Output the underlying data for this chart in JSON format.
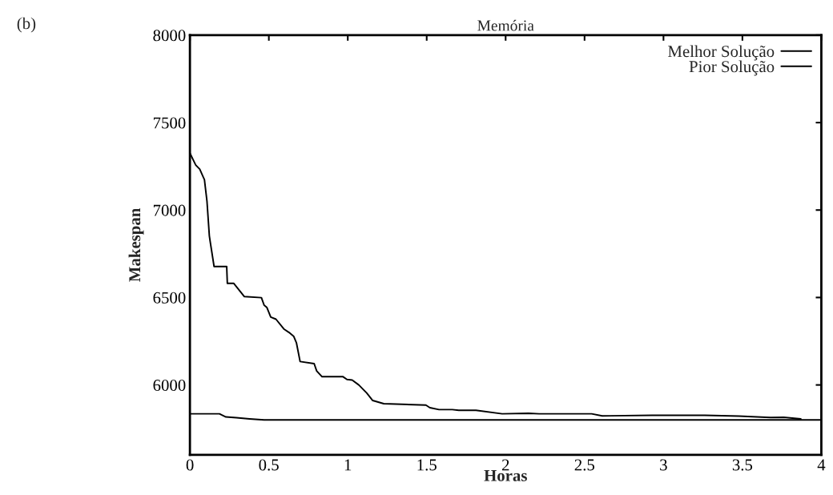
{
  "chart_data": {
    "type": "line",
    "title": "Memória",
    "xlabel": "Horas",
    "ylabel": "Makespan",
    "annotations": [
      "(b)"
    ],
    "xlim": [
      0,
      4
    ],
    "xticks": [
      0,
      0.5,
      1,
      1.5,
      2,
      2.5,
      3,
      3.5,
      4
    ],
    "ylim": [
      5600,
      8000
    ],
    "yticks": [
      6000,
      6500,
      7000,
      7500,
      8000
    ],
    "grid": false,
    "legend": "top right",
    "marker": "none",
    "line_style": "solid",
    "series": [
      {
        "name": "Melhor Solução",
        "color": "#000000",
        "x": [
          0,
          0.187,
          0.228,
          0.295,
          0.378,
          0.47,
          4
        ],
        "values": [
          5835,
          5835,
          5817,
          5813,
          5806,
          5800,
          5800
        ]
      },
      {
        "name": "Pior Solução",
        "color": "#000000",
        "x": [
          0,
          0.037,
          0.062,
          0.092,
          0.108,
          0.123,
          0.128,
          0.153,
          0.233,
          0.237,
          0.277,
          0.345,
          0.453,
          0.47,
          0.487,
          0.512,
          0.545,
          0.595,
          0.628,
          0.658,
          0.675,
          0.698,
          0.787,
          0.803,
          0.837,
          0.97,
          0.995,
          1.028,
          1.07,
          1.12,
          1.158,
          1.228,
          1.495,
          1.52,
          1.578,
          1.662,
          1.703,
          1.812,
          1.978,
          2.145,
          2.212,
          2.545,
          2.612,
          2.928,
          3.262,
          3.478,
          3.678,
          3.762,
          3.87
        ],
        "values": [
          7325,
          7257,
          7234,
          7173,
          7051,
          6853,
          6822,
          6677,
          6677,
          6581,
          6581,
          6505,
          6499,
          6456,
          6444,
          6388,
          6376,
          6320,
          6300,
          6277,
          6240,
          6134,
          6122,
          6080,
          6047,
          6047,
          6031,
          6028,
          6000,
          5954,
          5911,
          5893,
          5885,
          5870,
          5859,
          5859,
          5855,
          5855,
          5835,
          5838,
          5835,
          5835,
          5823,
          5826,
          5826,
          5822,
          5814,
          5815,
          5806
        ]
      }
    ]
  }
}
